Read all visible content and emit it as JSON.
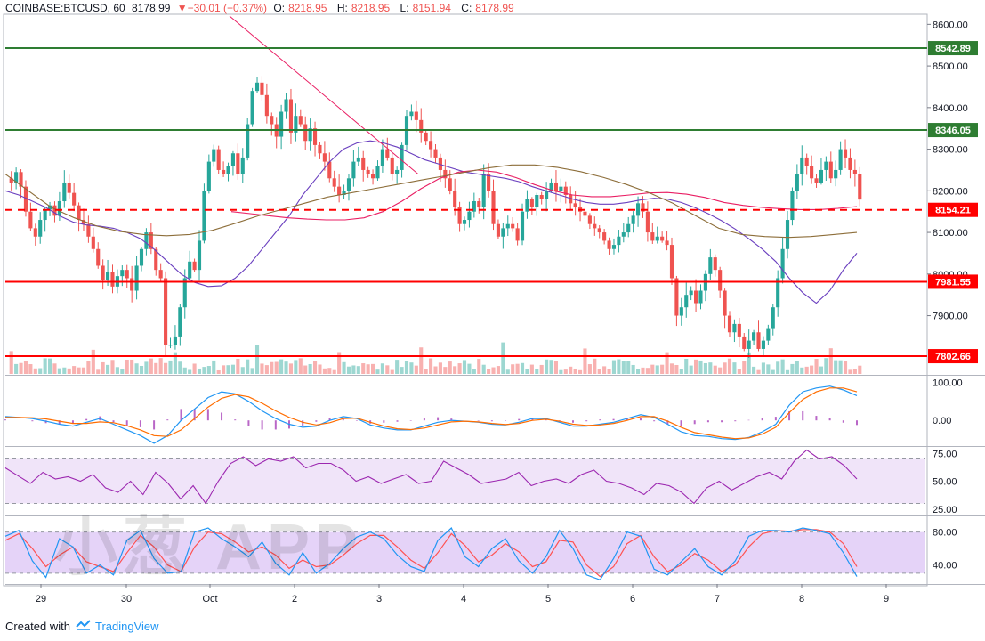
{
  "header": {
    "symbol": "COINBASE:BTCUSD, 60",
    "last": "8178.99",
    "change": "▼−30.01 (−0.37%)",
    "open_label": "O:",
    "open": "8218.95",
    "high_label": "H:",
    "high": "8218.95",
    "low_label": "L:",
    "low": "8151.94",
    "close_label": "C:",
    "close": "8178.99"
  },
  "footer": {
    "created_with": "Created with",
    "brand": "TradingView"
  },
  "watermark": "小葱 APP",
  "colors": {
    "up": "#26a69a",
    "down": "#ef5350",
    "support": "#ff0000",
    "resistance": "#2e7d32",
    "ma_fast": "#6a3fbf",
    "ma_mid": "#e91e63",
    "ma_slow": "#8d6e3a",
    "macd": "#2196f3",
    "signal": "#ff6d00",
    "hist": "#9c27b0",
    "rsi": "#9c27b0",
    "stoch_k": "#2196f3",
    "stoch_d": "#ff5252"
  },
  "chart_data": [
    {
      "type": "candlestick",
      "name": "BTCUSD 60",
      "price_axis_ticks": [
        "8600.00",
        "8500.00",
        "8400.00",
        "8300.00",
        "8200.00",
        "8100.00",
        "8000.00",
        "7900.00"
      ],
      "price_range": [
        7760,
        8620
      ],
      "time_axis_labels": [
        "29",
        "30",
        "Oct",
        "2",
        "3",
        "4",
        "5",
        "6",
        "7",
        "8",
        "9"
      ],
      "horizontal_levels": [
        {
          "value": 8542.89,
          "label": "8542.89",
          "style": "solid",
          "color": "#2e7d32"
        },
        {
          "value": 8346.05,
          "label": "8346.05",
          "style": "solid",
          "color": "#2e7d32"
        },
        {
          "value": 8154.21,
          "label": "8154.21",
          "style": "dashed",
          "color": "#ff0000"
        },
        {
          "value": 7981.55,
          "label": "7981.55",
          "style": "solid",
          "color": "#ff0000"
        },
        {
          "value": 7802.66,
          "label": "7802.66",
          "style": "solid",
          "color": "#ff0000"
        }
      ],
      "closes": [
        8220,
        8245,
        8210,
        8150,
        8110,
        8090,
        8130,
        8155,
        8165,
        8140,
        8175,
        8220,
        8195,
        8165,
        8130,
        8120,
        8090,
        8060,
        8020,
        7985,
        8005,
        7970,
        7995,
        8010,
        7990,
        7960,
        8020,
        8060,
        8100,
        8060,
        8010,
        7990,
        7830,
        7830,
        7850,
        7920,
        7990,
        8030,
        8010,
        8080,
        8200,
        8270,
        8300,
        8250,
        8240,
        8260,
        8290,
        8240,
        8280,
        8360,
        8440,
        8460,
        8430,
        8380,
        8360,
        8330,
        8390,
        8420,
        8340,
        8380,
        8360,
        8320,
        8350,
        8310,
        8290,
        8270,
        8230,
        8210,
        8190,
        8200,
        8230,
        8270,
        8280,
        8250,
        8240,
        8230,
        8260,
        8300,
        8280,
        8240,
        8250,
        8310,
        8380,
        8390,
        8370,
        8340,
        8320,
        8300,
        8280,
        8250,
        8230,
        8200,
        8160,
        8120,
        8130,
        8150,
        8175,
        8160,
        8240,
        8200,
        8120,
        8090,
        8110,
        8120,
        8110,
        8080,
        8150,
        8180,
        8160,
        8190,
        8180,
        8200,
        8220,
        8200,
        8210,
        8190,
        8170,
        8160,
        8150,
        8140,
        8120,
        8110,
        8100,
        8080,
        8060,
        8070,
        8090,
        8100,
        8120,
        8140,
        8170,
        8150,
        8100,
        8080,
        8090,
        8080,
        8070,
        7990,
        7900,
        7920,
        7950,
        7960,
        7930,
        7960,
        8000,
        8040,
        8010,
        7960,
        7900,
        7860,
        7880,
        7850,
        7820,
        7840,
        7860,
        7820,
        7840,
        7870,
        7920,
        7990,
        8060,
        8130,
        8200,
        8240,
        8280,
        8260,
        8230,
        8220,
        8250,
        8270,
        8230,
        8250,
        8300,
        8280,
        8250,
        8240,
        8179
      ],
      "ma_fast": [
        8200,
        8190,
        8175,
        8160,
        8140,
        8125,
        8118,
        8115,
        8110,
        8100,
        8085,
        8060,
        8030,
        8000,
        7980,
        7970,
        7972,
        7990,
        8020,
        8060,
        8100,
        8140,
        8190,
        8230,
        8270,
        8300,
        8315,
        8320,
        8315,
        8305,
        8290,
        8275,
        8265,
        8255,
        8245,
        8240,
        8235,
        8230,
        8222,
        8210,
        8200,
        8190,
        8180,
        8172,
        8168,
        8168,
        8172,
        8178,
        8182,
        8180,
        8172,
        8160,
        8145,
        8128,
        8108,
        8085,
        8060,
        8030,
        7990,
        7955,
        7930,
        7960,
        8010,
        8050
      ],
      "ma_mid": [
        8150,
        8145,
        8140,
        8135,
        8132,
        8130,
        8130,
        8135,
        8150,
        8175,
        8205,
        8230,
        8245,
        8250,
        8245,
        8232,
        8215,
        8200,
        8190,
        8186,
        8186,
        8190,
        8195,
        8196,
        8192,
        8184,
        8172,
        8165,
        8160,
        8157,
        8155,
        8155,
        8158,
        8162
      ],
      "ma_slow": [
        8240,
        8200,
        8160,
        8135,
        8115,
        8102,
        8095,
        8092,
        8095,
        8105,
        8122,
        8140,
        8155,
        8170,
        8185,
        8195,
        8205,
        8215,
        8225,
        8235,
        8245,
        8255,
        8262,
        8262,
        8256,
        8246,
        8232,
        8215,
        8195,
        8170,
        8140,
        8110,
        8095,
        8090,
        8088,
        8090,
        8095,
        8100
      ],
      "ma_series_names": []
    },
    {
      "type": "macd",
      "axis_ticks": [
        "100.00",
        "0.00"
      ],
      "range": [
        -65,
        115
      ],
      "macd": [
        10,
        8,
        5,
        -2,
        -10,
        -15,
        -5,
        5,
        -10,
        -25,
        -40,
        -60,
        -40,
        0,
        30,
        60,
        75,
        70,
        50,
        25,
        5,
        -10,
        -18,
        -15,
        0,
        10,
        5,
        -12,
        -20,
        -25,
        -25,
        -15,
        -5,
        0,
        -2,
        -5,
        -10,
        -12,
        -5,
        5,
        5,
        -5,
        -15,
        -15,
        -10,
        -5,
        5,
        15,
        8,
        -10,
        -30,
        -40,
        -42,
        -48,
        -50,
        -45,
        -30,
        -10,
        40,
        75,
        85,
        90,
        80,
        65
      ],
      "signal": [
        8,
        8,
        7,
        4,
        -2,
        -8,
        -8,
        -4,
        -6,
        -14,
        -25,
        -40,
        -42,
        -25,
        5,
        35,
        58,
        68,
        62,
        45,
        25,
        8,
        -5,
        -12,
        -6,
        5,
        6,
        -5,
        -15,
        -22,
        -24,
        -20,
        -12,
        -4,
        -2,
        -4,
        -8,
        -11,
        -8,
        0,
        3,
        -2,
        -10,
        -13,
        -12,
        -8,
        0,
        10,
        10,
        -2,
        -18,
        -32,
        -38,
        -44,
        -48,
        -46,
        -36,
        -18,
        20,
        55,
        75,
        85,
        85,
        75
      ]
    },
    {
      "type": "rsi",
      "axis_ticks": [
        "75.00",
        "50.00",
        "25.00"
      ],
      "range": [
        20,
        80
      ],
      "bands": [
        70,
        30
      ],
      "values": [
        62,
        55,
        48,
        58,
        52,
        54,
        50,
        56,
        44,
        40,
        50,
        38,
        58,
        48,
        34,
        46,
        30,
        50,
        66,
        72,
        64,
        70,
        68,
        72,
        62,
        66,
        66,
        60,
        50,
        54,
        48,
        52,
        56,
        48,
        50,
        68,
        62,
        56,
        48,
        50,
        52,
        58,
        46,
        50,
        52,
        48,
        56,
        60,
        50,
        48,
        44,
        38,
        48,
        46,
        40,
        30,
        44,
        50,
        42,
        48,
        54,
        58,
        52,
        68,
        78,
        70,
        72,
        64,
        52
      ]
    },
    {
      "type": "stochastic",
      "axis_ticks": [
        "80.00",
        "40.00"
      ],
      "range": [
        18,
        98
      ],
      "bands": [
        80,
        30
      ],
      "k": [
        75,
        82,
        45,
        25,
        72,
        62,
        30,
        40,
        28,
        70,
        82,
        48,
        30,
        32,
        80,
        85,
        72,
        62,
        50,
        68,
        42,
        28,
        55,
        30,
        42,
        60,
        74,
        80,
        72,
        52,
        38,
        32,
        70,
        85,
        50,
        38,
        60,
        72,
        45,
        30,
        50,
        82,
        60,
        28,
        22,
        48,
        80,
        75,
        35,
        28,
        44,
        60,
        38,
        28,
        45,
        75,
        82,
        82,
        80,
        85,
        82,
        78,
        55,
        26
      ],
      "d": [
        70,
        78,
        60,
        38,
        52,
        62,
        44,
        38,
        32,
        55,
        76,
        62,
        40,
        32,
        62,
        80,
        78,
        68,
        56,
        62,
        52,
        36,
        46,
        38,
        40,
        52,
        66,
        76,
        76,
        62,
        46,
        36,
        55,
        78,
        64,
        44,
        52,
        66,
        56,
        38,
        44,
        70,
        68,
        40,
        26,
        38,
        66,
        76,
        50,
        32,
        40,
        54,
        46,
        32,
        40,
        62,
        78,
        82,
        81,
        83,
        83,
        80,
        66,
        38
      ]
    }
  ]
}
